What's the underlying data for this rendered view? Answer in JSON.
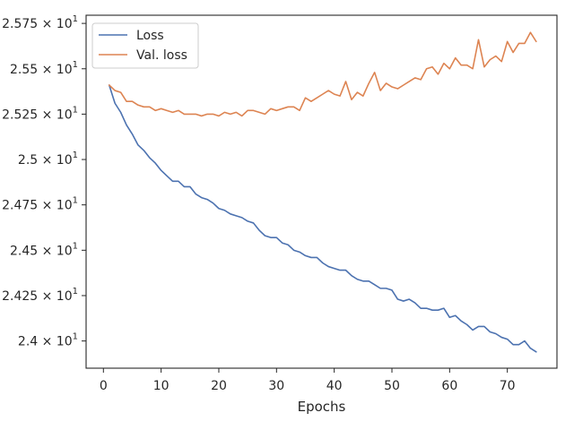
{
  "chart_data": {
    "type": "line",
    "title": "",
    "xlabel": "Epochs",
    "ylabel": "",
    "xlim": [
      -3,
      78.6
    ],
    "ylim": [
      23.85,
      25.795
    ],
    "x_ticks": [
      0,
      10,
      20,
      30,
      40,
      50,
      60,
      70
    ],
    "x_tick_labels": [
      "0",
      "10",
      "20",
      "30",
      "40",
      "50",
      "60",
      "70"
    ],
    "y_ticks": [
      24.0,
      24.25,
      24.5,
      24.75,
      25.0,
      25.25,
      25.5,
      25.75
    ],
    "y_tick_labels": [
      {
        "mantissa": "2.4",
        "exp": "1"
      },
      {
        "mantissa": "2.425",
        "exp": "1"
      },
      {
        "mantissa": "2.45",
        "exp": "1"
      },
      {
        "mantissa": "2.475",
        "exp": "1"
      },
      {
        "mantissa": "2.5",
        "exp": "1"
      },
      {
        "mantissa": "2.525",
        "exp": "1"
      },
      {
        "mantissa": "2.55",
        "exp": "1"
      },
      {
        "mantissa": "2.575",
        "exp": "1"
      }
    ],
    "times_symbol": "×",
    "base": "10",
    "legend_position": "top-left",
    "grid": false,
    "x": [
      1,
      2,
      3,
      4,
      5,
      6,
      7,
      8,
      9,
      10,
      11,
      12,
      13,
      14,
      15,
      16,
      17,
      18,
      19,
      20,
      21,
      22,
      23,
      24,
      25,
      26,
      27,
      28,
      29,
      30,
      31,
      32,
      33,
      34,
      35,
      36,
      37,
      38,
      39,
      40,
      41,
      42,
      43,
      44,
      45,
      46,
      47,
      48,
      49,
      50,
      51,
      52,
      53,
      54,
      55,
      56,
      57,
      58,
      59,
      60,
      61,
      62,
      63,
      64,
      65,
      66,
      67,
      68,
      69,
      70,
      71,
      72,
      73,
      74,
      75
    ],
    "series": [
      {
        "name": "Loss",
        "color": "#4c72b0",
        "values": [
          25.41,
          25.31,
          25.26,
          25.19,
          25.14,
          25.08,
          25.05,
          25.01,
          24.98,
          24.94,
          24.91,
          24.88,
          24.88,
          24.85,
          24.85,
          24.81,
          24.79,
          24.78,
          24.76,
          24.73,
          24.72,
          24.7,
          24.69,
          24.68,
          24.66,
          24.65,
          24.61,
          24.58,
          24.57,
          24.57,
          24.54,
          24.53,
          24.5,
          24.49,
          24.47,
          24.46,
          24.46,
          24.43,
          24.41,
          24.4,
          24.39,
          24.39,
          24.36,
          24.34,
          24.33,
          24.33,
          24.31,
          24.29,
          24.29,
          24.28,
          24.23,
          24.22,
          24.23,
          24.21,
          24.18,
          24.18,
          24.17,
          24.17,
          24.18,
          24.13,
          24.14,
          24.11,
          24.09,
          24.06,
          24.08,
          24.08,
          24.05,
          24.04,
          24.02,
          24.01,
          23.98,
          23.98,
          24.0,
          23.96,
          23.94
        ]
      },
      {
        "name": "Val. loss",
        "color": "#dd8452",
        "values": [
          25.41,
          25.38,
          25.37,
          25.32,
          25.32,
          25.3,
          25.29,
          25.29,
          25.27,
          25.28,
          25.27,
          25.26,
          25.27,
          25.25,
          25.25,
          25.25,
          25.24,
          25.25,
          25.25,
          25.24,
          25.26,
          25.25,
          25.26,
          25.24,
          25.27,
          25.27,
          25.26,
          25.25,
          25.28,
          25.27,
          25.28,
          25.29,
          25.29,
          25.27,
          25.34,
          25.32,
          25.34,
          25.36,
          25.38,
          25.36,
          25.35,
          25.43,
          25.33,
          25.37,
          25.35,
          25.42,
          25.48,
          25.38,
          25.42,
          25.4,
          25.39,
          25.41,
          25.43,
          25.45,
          25.44,
          25.5,
          25.51,
          25.47,
          25.53,
          25.5,
          25.56,
          25.52,
          25.52,
          25.5,
          25.66,
          25.51,
          25.55,
          25.57,
          25.54,
          25.65,
          25.59,
          25.64,
          25.64,
          25.7,
          25.65
        ]
      }
    ]
  }
}
